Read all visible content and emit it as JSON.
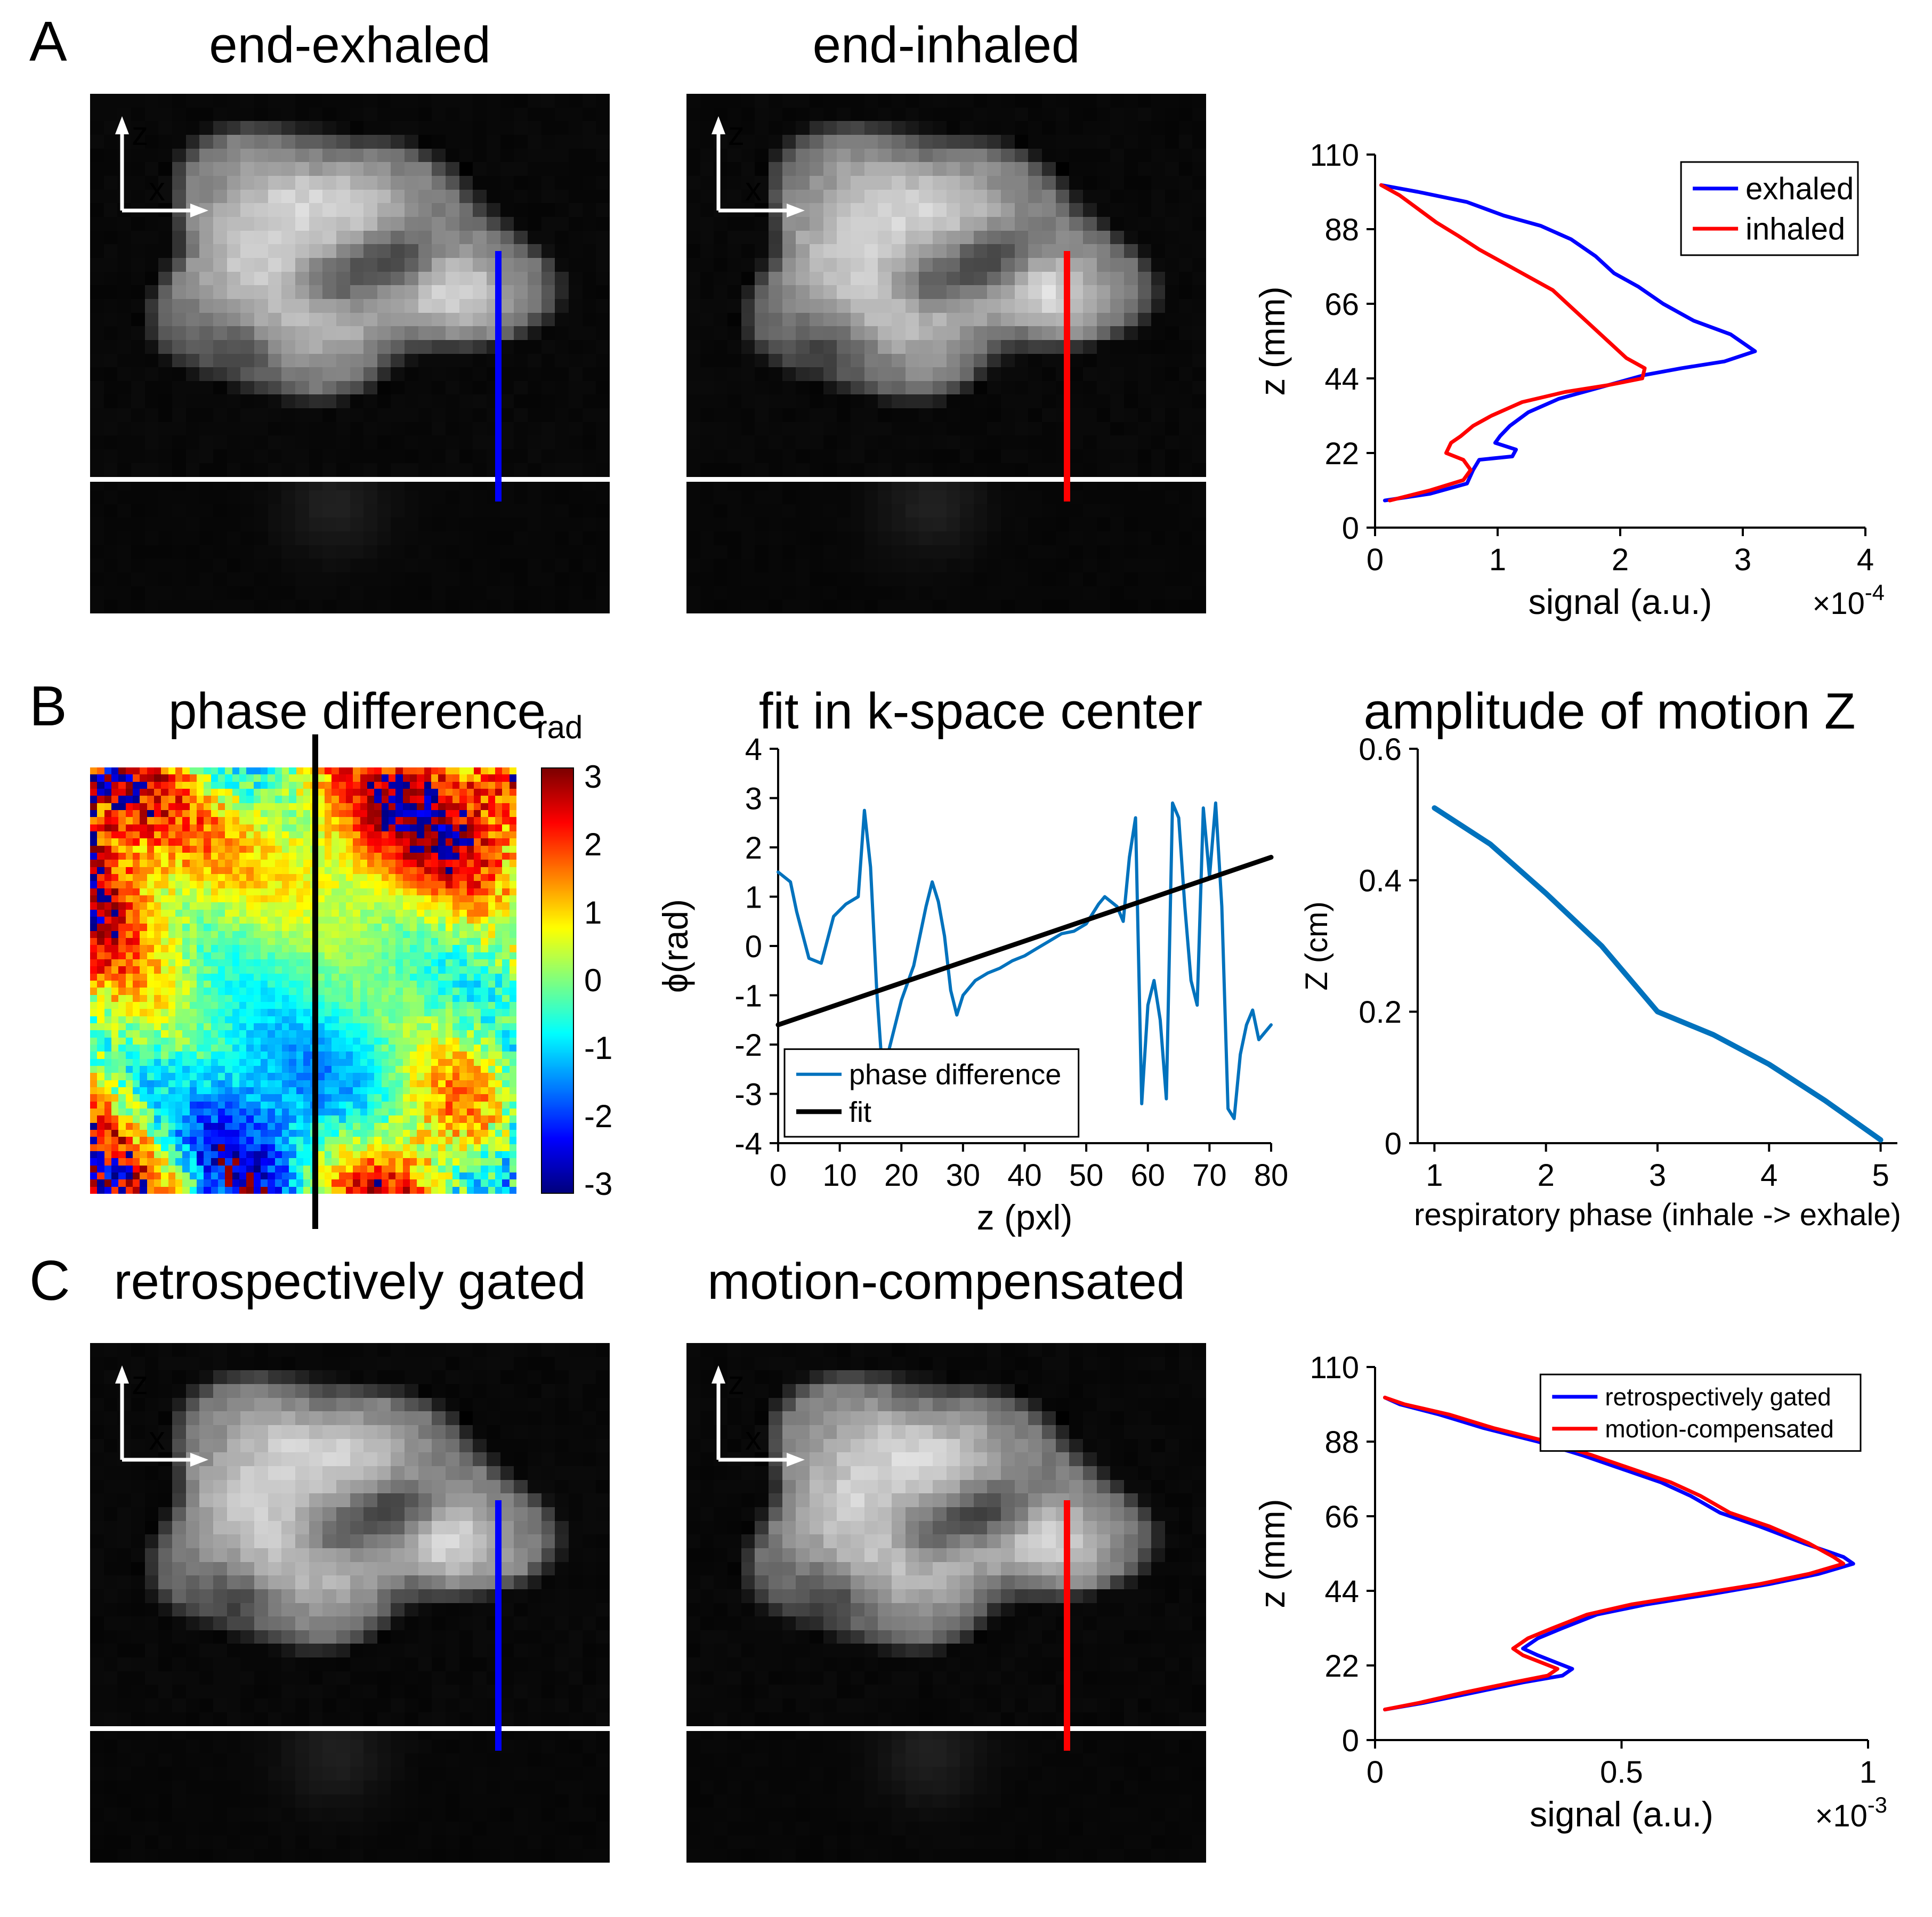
{
  "axes_overlay": {
    "up": "z",
    "right": "x"
  },
  "panels": {
    "a": {
      "label": "A",
      "image1_title": "end-exhaled",
      "image2_title": "end-inhaled"
    },
    "b": {
      "label": "B",
      "phase_title": "phase difference",
      "colorbar": {
        "label": "rad",
        "ticks": [
          3,
          2,
          1,
          0,
          -1,
          -2,
          -3
        ],
        "min": -3.1416,
        "max": 3.1416
      }
    },
    "c": {
      "label": "C",
      "image1_title": "retrospectively gated",
      "image2_title": "motion-compensated"
    }
  },
  "overlay_lines": {
    "exhaled_color": "#0000ff",
    "inhaled_color": "#ff0000",
    "gated_color": "#0000ff",
    "compensated_color": "#ff0000",
    "phase_cut_color": "#000000",
    "table_line_color": "#ffffff"
  },
  "chart_data": [
    {
      "id": "exhale-inhale-profile",
      "type": "line",
      "title": "",
      "xlabel": "signal (a.u.)",
      "ylabel": "z (mm)",
      "x_scale": {
        "base": "×10",
        "exp": "-4"
      },
      "xlim": [
        0,
        4
      ],
      "ylim": [
        0,
        110
      ],
      "xticks": [
        0,
        1,
        2,
        3,
        4
      ],
      "yticks": [
        0,
        22,
        44,
        66,
        88,
        110
      ],
      "legend": {
        "position": "top-right"
      },
      "series": [
        {
          "name": "exhaled",
          "color": "#0000ff",
          "points": [
            [
              0.05,
              101
            ],
            [
              0.35,
              99
            ],
            [
              0.75,
              96
            ],
            [
              1.05,
              92
            ],
            [
              1.35,
              89
            ],
            [
              1.6,
              85
            ],
            [
              1.8,
              80
            ],
            [
              1.95,
              75
            ],
            [
              2.15,
              71
            ],
            [
              2.35,
              66
            ],
            [
              2.6,
              61
            ],
            [
              2.9,
              57
            ],
            [
              3.1,
              52
            ],
            [
              2.85,
              49
            ],
            [
              2.5,
              47
            ],
            [
              2.2,
              45
            ],
            [
              1.8,
              41
            ],
            [
              1.5,
              38
            ],
            [
              1.25,
              34
            ],
            [
              1.1,
              30
            ],
            [
              1.02,
              27
            ],
            [
              0.98,
              25
            ],
            [
              1.15,
              23
            ],
            [
              1.12,
              21
            ],
            [
              0.85,
              20
            ],
            [
              0.8,
              17
            ],
            [
              0.75,
              13
            ],
            [
              0.45,
              10
            ],
            [
              0.08,
              8
            ]
          ]
        },
        {
          "name": "inhaled",
          "color": "#ff0000",
          "points": [
            [
              0.05,
              101
            ],
            [
              0.2,
              98
            ],
            [
              0.35,
              94
            ],
            [
              0.5,
              90
            ],
            [
              0.68,
              86
            ],
            [
              0.85,
              82
            ],
            [
              1.05,
              78
            ],
            [
              1.25,
              74
            ],
            [
              1.45,
              70
            ],
            [
              1.6,
              65
            ],
            [
              1.75,
              60
            ],
            [
              1.9,
              55
            ],
            [
              2.05,
              50
            ],
            [
              2.2,
              47
            ],
            [
              2.18,
              44
            ],
            [
              1.9,
              42
            ],
            [
              1.55,
              40
            ],
            [
              1.2,
              37
            ],
            [
              0.95,
              33
            ],
            [
              0.8,
              30
            ],
            [
              0.7,
              27
            ],
            [
              0.62,
              25
            ],
            [
              0.58,
              22
            ],
            [
              0.72,
              20
            ],
            [
              0.78,
              17
            ],
            [
              0.72,
              14
            ],
            [
              0.45,
              11
            ],
            [
              0.12,
              8
            ]
          ]
        }
      ]
    },
    {
      "id": "kspace-center-fit",
      "type": "line",
      "title": "fit in k-space center",
      "xlabel": "z (pxl)",
      "ylabel": "ϕ(rad)",
      "xlim": [
        0,
        80
      ],
      "ylim": [
        -4,
        4
      ],
      "xticks": [
        0,
        10,
        20,
        30,
        40,
        50,
        60,
        70,
        80
      ],
      "yticks": [
        -4,
        -3,
        -2,
        -1,
        0,
        1,
        2,
        3,
        4
      ],
      "legend": {
        "position": "bottom-left"
      },
      "series": [
        {
          "name": "phase difference",
          "color": "#0072bd",
          "points": [
            [
              0,
              1.5
            ],
            [
              2,
              1.3
            ],
            [
              3,
              0.7
            ],
            [
              5,
              -0.25
            ],
            [
              7,
              -0.35
            ],
            [
              9,
              0.6
            ],
            [
              11,
              0.85
            ],
            [
              13,
              1.0
            ],
            [
              14,
              2.75
            ],
            [
              15,
              1.6
            ],
            [
              16,
              -0.9
            ],
            [
              17,
              -2.7
            ],
            [
              18,
              -2.1
            ],
            [
              20,
              -1.1
            ],
            [
              22,
              -0.4
            ],
            [
              24,
              0.8
            ],
            [
              25,
              1.3
            ],
            [
              26,
              0.9
            ],
            [
              27,
              0.2
            ],
            [
              28,
              -0.9
            ],
            [
              29,
              -1.4
            ],
            [
              30,
              -1.0
            ],
            [
              32,
              -0.7
            ],
            [
              34,
              -0.55
            ],
            [
              36,
              -0.45
            ],
            [
              38,
              -0.3
            ],
            [
              40,
              -0.2
            ],
            [
              42,
              -0.05
            ],
            [
              44,
              0.1
            ],
            [
              46,
              0.25
            ],
            [
              48,
              0.3
            ],
            [
              50,
              0.45
            ],
            [
              52,
              0.85
            ],
            [
              53,
              1.0
            ],
            [
              55,
              0.8
            ],
            [
              56,
              0.5
            ],
            [
              57,
              1.8
            ],
            [
              58,
              2.6
            ],
            [
              59,
              -3.2
            ],
            [
              60,
              -1.2
            ],
            [
              61,
              -0.7
            ],
            [
              62,
              -1.5
            ],
            [
              63,
              -3.1
            ],
            [
              64,
              2.9
            ],
            [
              65,
              2.6
            ],
            [
              66,
              0.8
            ],
            [
              67,
              -0.7
            ],
            [
              68,
              -1.2
            ],
            [
              69,
              2.8
            ],
            [
              70,
              1.4
            ],
            [
              71,
              2.9
            ],
            [
              72,
              0.8
            ],
            [
              73,
              -3.3
            ],
            [
              74,
              -3.5
            ],
            [
              75,
              -2.2
            ],
            [
              76,
              -1.6
            ],
            [
              77,
              -1.3
            ],
            [
              78,
              -1.9
            ],
            [
              80,
              -1.6
            ]
          ]
        },
        {
          "name": "fit",
          "color": "#000000",
          "points": [
            [
              0,
              -1.6
            ],
            [
              80,
              1.8
            ]
          ]
        }
      ]
    },
    {
      "id": "motion-amplitude",
      "type": "line",
      "title": "amplitude of motion Z",
      "xlabel": "respiratory phase (inhale -> exhale)",
      "ylabel": "Z (cm)",
      "xlim": [
        0.85,
        5.15
      ],
      "ylim": [
        0,
        0.6
      ],
      "xticks": [
        1,
        2,
        3,
        4,
        5
      ],
      "yticks": [
        0,
        0.2,
        0.4,
        0.6
      ],
      "series": [
        {
          "name": "amplitude of motion Z",
          "color": "#0072bd",
          "points": [
            [
              1,
              0.51
            ],
            [
              1.5,
              0.455
            ],
            [
              2,
              0.38
            ],
            [
              2.5,
              0.3
            ],
            [
              3,
              0.2
            ],
            [
              3.5,
              0.165
            ],
            [
              4,
              0.12
            ],
            [
              4.5,
              0.065
            ],
            [
              5,
              0.005
            ]
          ]
        }
      ]
    },
    {
      "id": "gated-compensated-profile",
      "type": "line",
      "title": "",
      "xlabel": "signal (a.u.)",
      "ylabel": "z (mm)",
      "x_scale": {
        "base": "×10",
        "exp": "-3"
      },
      "xlim": [
        0,
        1
      ],
      "ylim": [
        0,
        110
      ],
      "xticks": [
        0,
        0.5,
        1
      ],
      "yticks": [
        0,
        22,
        44,
        66,
        88,
        110
      ],
      "legend": {
        "position": "top-right"
      },
      "series": [
        {
          "name": "retrospectively gated",
          "color": "#0000ff",
          "points": [
            [
              0.02,
              101
            ],
            [
              0.05,
              99
            ],
            [
              0.13,
              96
            ],
            [
              0.22,
              92
            ],
            [
              0.33,
              88
            ],
            [
              0.42,
              84
            ],
            [
              0.5,
              80
            ],
            [
              0.58,
              76
            ],
            [
              0.64,
              72
            ],
            [
              0.7,
              67
            ],
            [
              0.78,
              63
            ],
            [
              0.87,
              58
            ],
            [
              0.95,
              54
            ],
            [
              0.97,
              52
            ],
            [
              0.9,
              49
            ],
            [
              0.8,
              46
            ],
            [
              0.68,
              43
            ],
            [
              0.55,
              40
            ],
            [
              0.45,
              37
            ],
            [
              0.38,
              33
            ],
            [
              0.33,
              30
            ],
            [
              0.3,
              27
            ],
            [
              0.33,
              25
            ],
            [
              0.4,
              21
            ],
            [
              0.38,
              19
            ],
            [
              0.3,
              17
            ],
            [
              0.2,
              14
            ],
            [
              0.1,
              11
            ],
            [
              0.02,
              9
            ]
          ]
        },
        {
          "name": "motion-compensated",
          "color": "#ff0000",
          "points": [
            [
              0.02,
              101
            ],
            [
              0.06,
              99
            ],
            [
              0.15,
              96
            ],
            [
              0.24,
              92
            ],
            [
              0.35,
              88
            ],
            [
              0.44,
              84
            ],
            [
              0.52,
              80
            ],
            [
              0.6,
              76
            ],
            [
              0.66,
              72
            ],
            [
              0.72,
              67
            ],
            [
              0.8,
              63
            ],
            [
              0.88,
              58
            ],
            [
              0.93,
              54
            ],
            [
              0.95,
              52
            ],
            [
              0.88,
              49
            ],
            [
              0.78,
              46
            ],
            [
              0.65,
              43
            ],
            [
              0.52,
              40
            ],
            [
              0.43,
              37
            ],
            [
              0.36,
              33
            ],
            [
              0.31,
              30
            ],
            [
              0.28,
              27
            ],
            [
              0.3,
              25
            ],
            [
              0.37,
              21
            ],
            [
              0.35,
              19
            ],
            [
              0.28,
              17
            ],
            [
              0.18,
              14
            ],
            [
              0.09,
              11
            ],
            [
              0.02,
              9
            ]
          ]
        }
      ]
    }
  ]
}
